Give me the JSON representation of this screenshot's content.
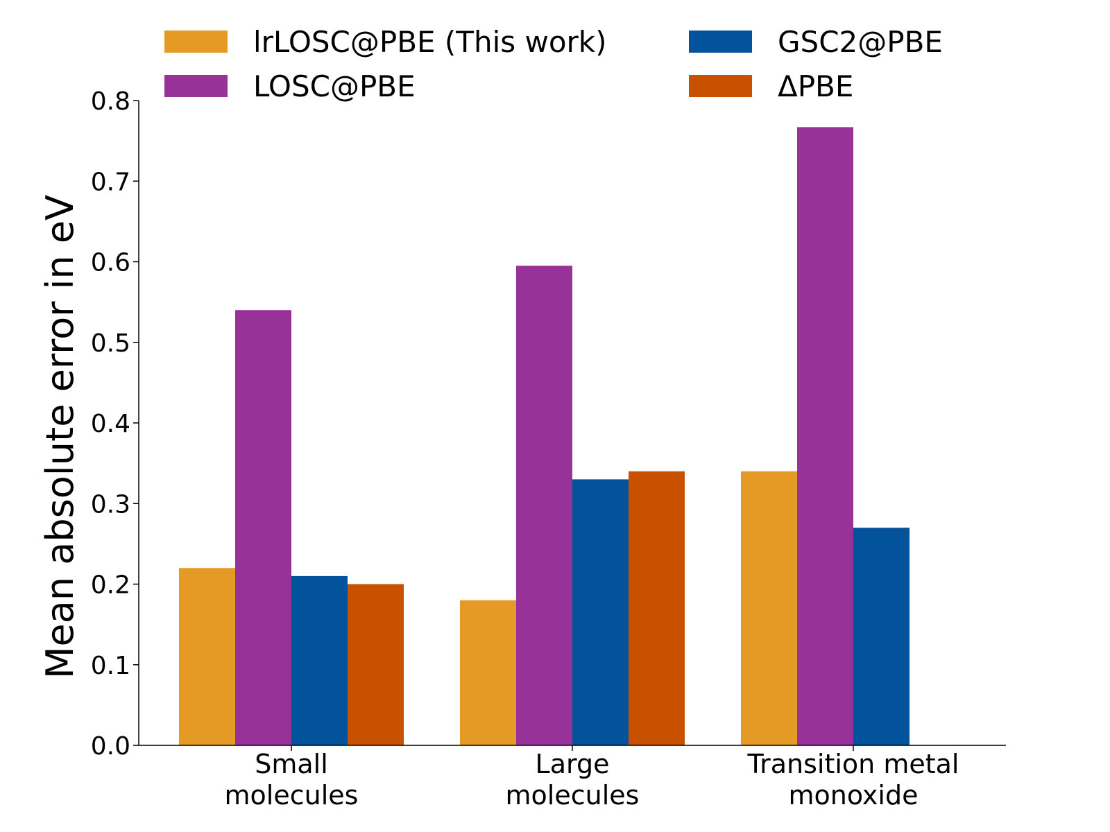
{
  "chart_data": {
    "type": "bar",
    "title": "",
    "xlabel": "",
    "ylabel": "Mean absolute error in eV",
    "ylim": [
      0,
      0.8
    ],
    "yticks": [
      "0.0",
      "0.1",
      "0.2",
      "0.3",
      "0.4",
      "0.5",
      "0.6",
      "0.7",
      "0.8"
    ],
    "ytick_values": [
      0,
      0.1,
      0.2,
      0.3,
      0.4,
      0.5,
      0.6,
      0.7,
      0.8
    ],
    "grid": false,
    "legend_position": "top",
    "categories": [
      [
        "Small",
        "molecules"
      ],
      [
        "Large",
        "molecules"
      ],
      [
        "Transition metal",
        "monoxide"
      ]
    ],
    "series": [
      {
        "name": "lrLOSC@PBE (This work)",
        "color": "#E69A26",
        "values": [
          0.22,
          0.18,
          0.34
        ]
      },
      {
        "name": "LOSC@PBE",
        "color": "#973298",
        "values": [
          0.54,
          0.595,
          0.767
        ]
      },
      {
        "name": "GSC2@PBE",
        "color": "#02539C",
        "values": [
          0.21,
          0.33,
          0.27
        ]
      },
      {
        "name": "ΔPBE",
        "color": "#C85100",
        "values": [
          0.2,
          0.34,
          null
        ]
      }
    ]
  }
}
